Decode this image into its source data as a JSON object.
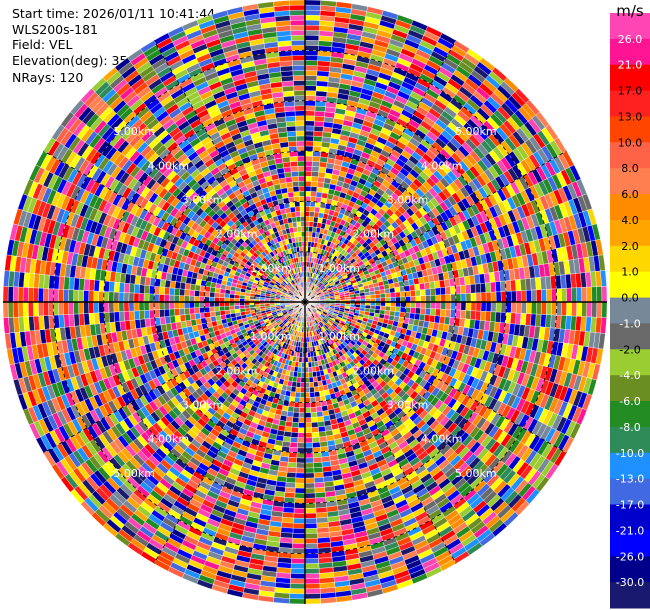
{
  "info": {
    "start_time": "Start time: 2026/01/11 10:41:44",
    "station": "WLS200s-181",
    "field": "Field: VEL",
    "elevation": "Elevation(deg): 35.00",
    "nrays": "NRays: 120"
  },
  "chart_data": {
    "type": "heatmap",
    "projection": "polar-ppi",
    "field": "VEL",
    "elevation_deg": 35.0,
    "n_rays": 120,
    "range_max_km": 6.0,
    "range_ring_labels": [
      "1.00km",
      "2.00km",
      "3.00km",
      "4.00km",
      "5.00km"
    ],
    "grid": true,
    "colorbar": {
      "unit": "m/s",
      "position": "right",
      "ticks": [
        "26.0",
        "21.0",
        "17.0",
        "13.0",
        "10.0",
        "8.0",
        "6.0",
        "4.0",
        "2.0",
        "1.0",
        "0.0",
        "-1.0",
        "-2.0",
        "-4.0",
        "-6.0",
        "-8.0",
        "-10.0",
        "-13.0",
        "-17.0",
        "-21.0",
        "-26.0",
        "-30.0"
      ],
      "colors": [
        "#ff44b4",
        "#ff1493",
        "#ff0000",
        "#ff2020",
        "#ff4500",
        "#ff6347",
        "#ff7f50",
        "#ff8c00",
        "#ffa500",
        "#ffd700",
        "#ffff00",
        "#778899",
        "#696969",
        "#9acd32",
        "#6b8e23",
        "#228b22",
        "#2e8b57",
        "#1e90ff",
        "#4169e1",
        "#0000cd",
        "#0000ff",
        "#00008b",
        "#191970"
      ]
    }
  }
}
